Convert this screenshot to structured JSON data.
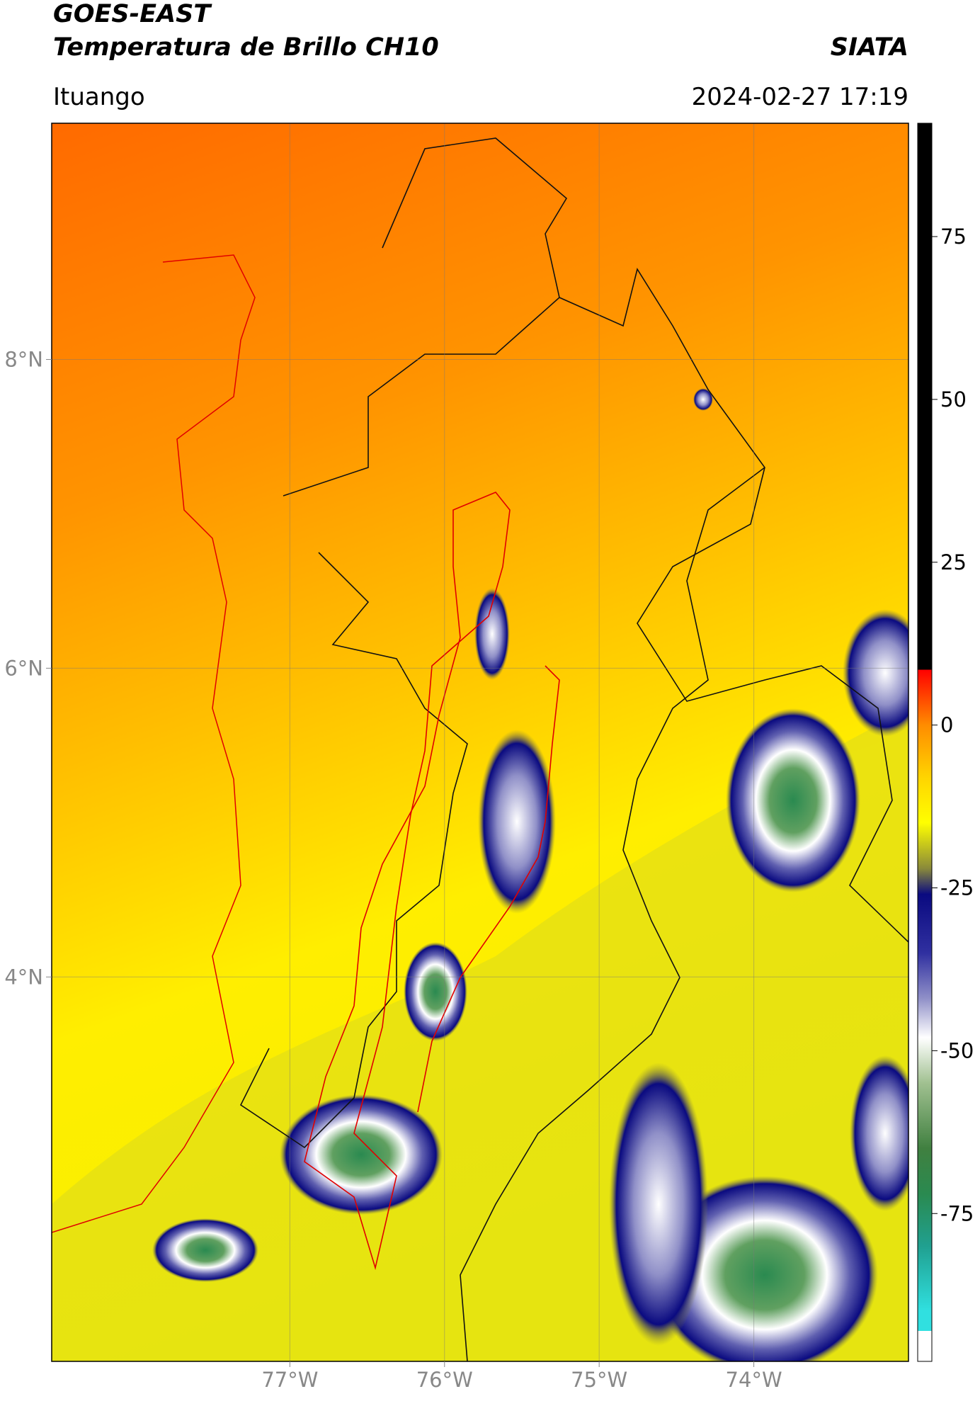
{
  "chart_data": {
    "type": "map",
    "title": "GOES-EAST",
    "subtitle": "Temperatura de Brillo CH10",
    "source": "SIATA",
    "region": "Ituango",
    "datetime": "2024-02-27 17:19",
    "xlim": [
      -78.54,
      -73.0
    ],
    "ylim": [
      1.51,
      9.53
    ],
    "xticks": [
      {
        "value": -77,
        "label": "77°W"
      },
      {
        "value": -76,
        "label": "76°W"
      },
      {
        "value": -75,
        "label": "75°W"
      },
      {
        "value": -74,
        "label": "74°W"
      }
    ],
    "yticks": [
      {
        "value": 4,
        "label": "4°N"
      },
      {
        "value": 6,
        "label": "6°N"
      },
      {
        "value": 8,
        "label": "8°N"
      }
    ],
    "grid": true,
    "colorbar": {
      "lim": [
        -97.7,
        92.4
      ],
      "ticks": [
        -75,
        -50,
        -25,
        0,
        25,
        50,
        75
      ],
      "stops": [
        {
          "value": 92.4,
          "color": "#000000"
        },
        {
          "value": 8.5,
          "color": "#000000"
        },
        {
          "value": 8.5,
          "color": "#ff0000"
        },
        {
          "value": 0,
          "color": "#ff8c00"
        },
        {
          "value": -8,
          "color": "#ffd400"
        },
        {
          "value": -15,
          "color": "#ffff00"
        },
        {
          "value": -22,
          "color": "#8a8a3a"
        },
        {
          "value": -26,
          "color": "#0a0a80"
        },
        {
          "value": -35,
          "color": "#3030a0"
        },
        {
          "value": -42,
          "color": "#9090c8"
        },
        {
          "value": -48,
          "color": "#ffffff"
        },
        {
          "value": -55,
          "color": "#a0c090"
        },
        {
          "value": -65,
          "color": "#408040"
        },
        {
          "value": -72,
          "color": "#2a8a50"
        },
        {
          "value": -80,
          "color": "#20a090"
        },
        {
          "value": -90,
          "color": "#30e0e0"
        },
        {
          "value": -93,
          "color": "#30e0e0"
        },
        {
          "value": -93,
          "color": "#ffffff"
        },
        {
          "value": -97.7,
          "color": "#ffffff"
        }
      ]
    }
  }
}
